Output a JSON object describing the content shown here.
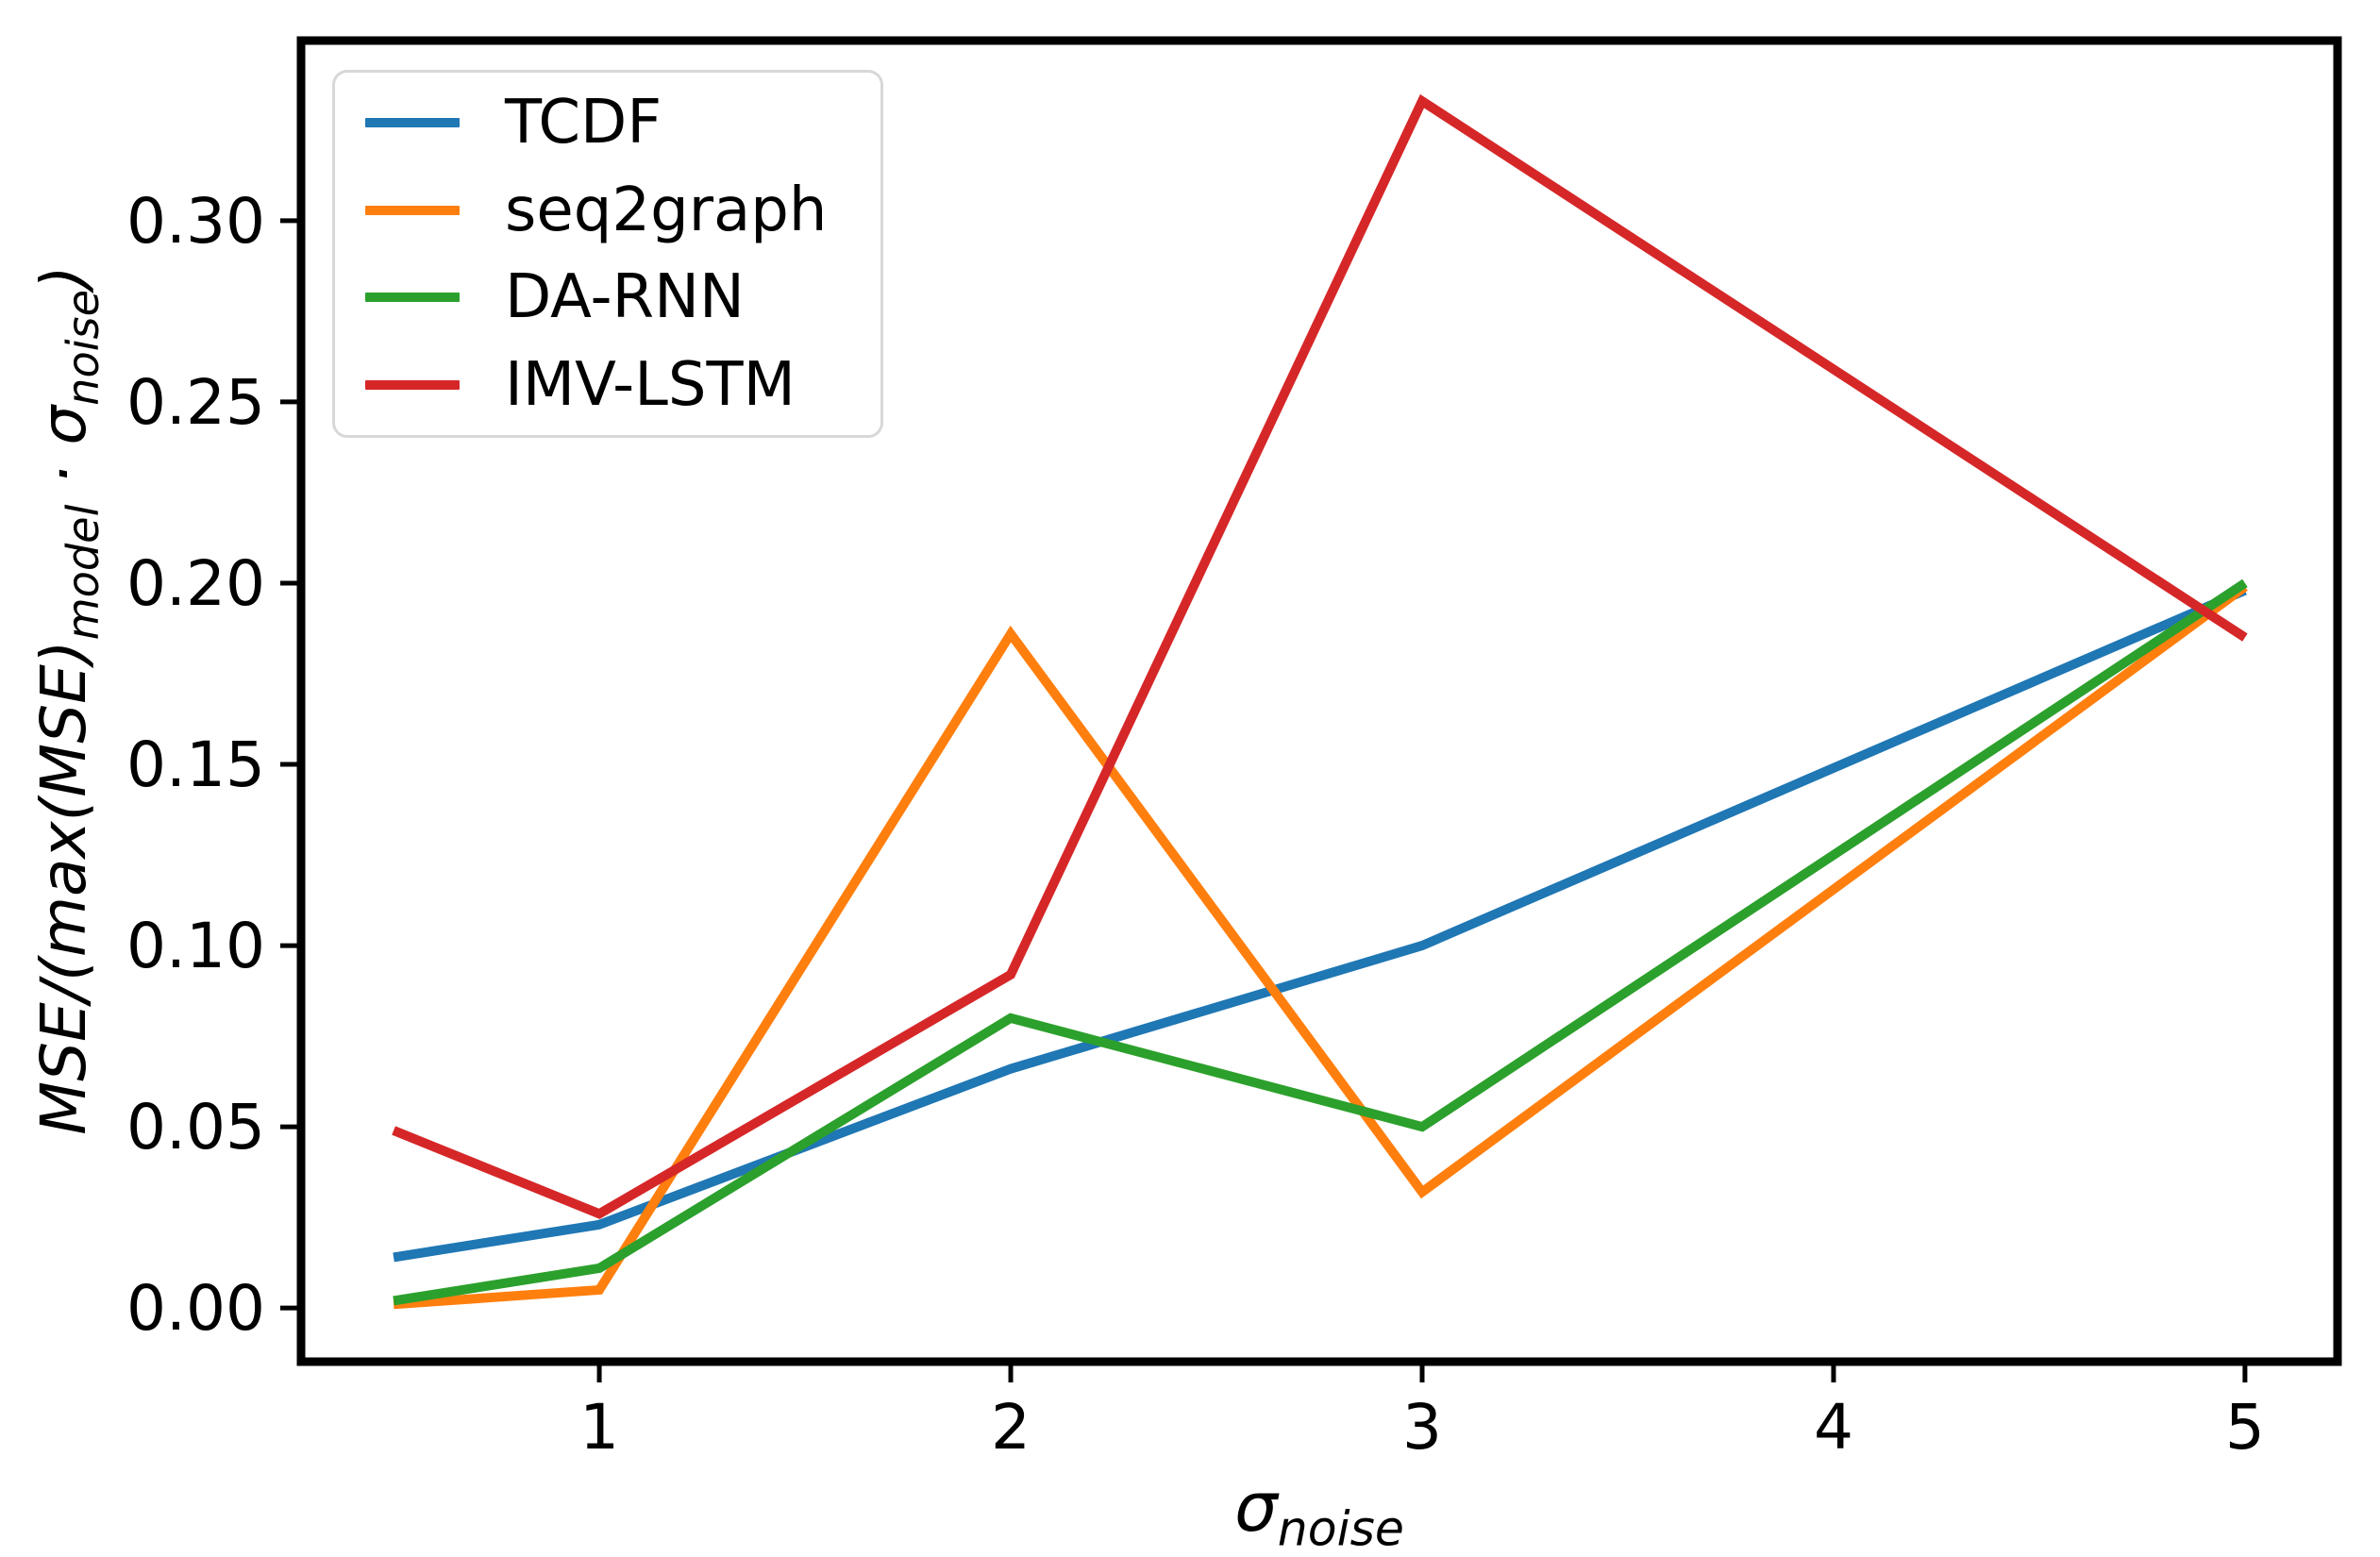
{
  "figure": {
    "background": "#ffffff",
    "spine_color": "#000000"
  },
  "axes": {
    "xlabel": {
      "base": "σ",
      "sub": "noise"
    },
    "ylabel": {
      "pre": "MSE/(max(MSE)",
      "sub1": "model",
      "mid": " · σ",
      "sub2": "noise",
      "post": ")"
    },
    "x_ticks": [
      "1",
      "2",
      "3",
      "4",
      "5"
    ],
    "y_ticks": [
      "0.00",
      "0.05",
      "0.10",
      "0.15",
      "0.20",
      "0.25",
      "0.30"
    ]
  },
  "legend": {
    "entries": [
      "TCDF",
      "seq2graph",
      "DA-RNN",
      "IMV-LSTM"
    ],
    "border_color": "#d8d8d8"
  },
  "chart_data": {
    "type": "line",
    "x": [
      0.5,
      1,
      2,
      3,
      5
    ],
    "series": [
      {
        "name": "TCDF",
        "color": "#1f77b4",
        "values": [
          0.014,
          0.023,
          0.066,
          0.1,
          0.198
        ]
      },
      {
        "name": "seq2graph",
        "color": "#ff7f0e",
        "values": [
          0.001,
          0.005,
          0.186,
          0.032,
          0.199
        ]
      },
      {
        "name": "DA-RNN",
        "color": "#2ca02c",
        "values": [
          0.002,
          0.011,
          0.08,
          0.05,
          0.2
        ]
      },
      {
        "name": "IMV-LSTM",
        "color": "#d62728",
        "values": [
          0.049,
          0.026,
          0.092,
          0.333,
          0.185
        ]
      }
    ],
    "xlabel": "σ_noise",
    "ylabel": "MSE/(max(MSE)_model · σ_noise)",
    "xlim": [
      0.275,
      5.225
    ],
    "ylim": [
      -0.0148,
      0.3497
    ],
    "x_tick_values": [
      1,
      2,
      3,
      4,
      5
    ],
    "y_tick_values": [
      0.0,
      0.05,
      0.1,
      0.15,
      0.2,
      0.25,
      0.3
    ],
    "grid": false,
    "legend_position": "upper-left",
    "line_width": 10
  }
}
